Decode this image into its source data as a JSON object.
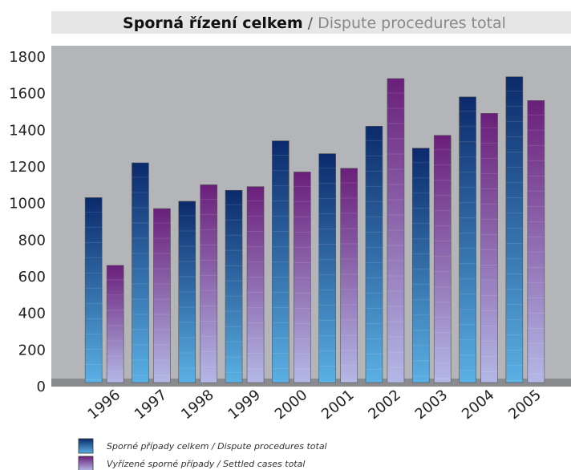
{
  "chart_data": {
    "type": "bar",
    "title": [
      "Sporná řízení celkem",
      "/",
      "Dispute procedures total"
    ],
    "categories": [
      "1996",
      "1997",
      "1998",
      "1999",
      "2000",
      "2001",
      "2002",
      "2003",
      "2004",
      "2005"
    ],
    "series": [
      {
        "name": "Sporné případy celkem / Dispute procedures total",
        "color": "#0b2a6b",
        "values": [
          1010,
          1200,
          990,
          1050,
          1320,
          1250,
          1400,
          1280,
          1560,
          1670
        ]
      },
      {
        "name": "Vyřízené sporné případy / Settled cases total",
        "color": "#6a1f7a",
        "values": [
          640,
          950,
          1080,
          1070,
          1150,
          1170,
          1660,
          1350,
          1470,
          1540
        ]
      }
    ],
    "ylim": [
      0,
      1800
    ],
    "yticks": [
      0,
      200,
      400,
      600,
      800,
      1000,
      1200,
      1400,
      1600,
      1800
    ]
  }
}
